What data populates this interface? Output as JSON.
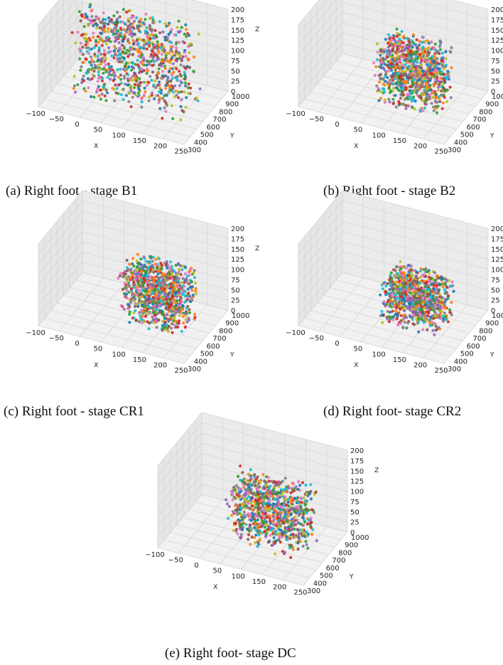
{
  "figure": {
    "panels": [
      {
        "id": "a",
        "caption": "(a) Right foot - stage B1"
      },
      {
        "id": "b",
        "caption": "(b) Right foot - stage B2"
      },
      {
        "id": "c",
        "caption": "(c) Right foot - stage CR1"
      },
      {
        "id": "d",
        "caption": "(d) Right foot- stage CR2"
      },
      {
        "id": "e",
        "caption": "(e) Right foot- stage DC"
      }
    ]
  },
  "chart_data": [
    {
      "type": "scatter",
      "dimensions": 3,
      "title": "",
      "caption": "(a) Right foot - stage B1",
      "xlabel": "X",
      "ylabel": "Y",
      "zlabel": "Z",
      "xlim": [
        -100,
        250
      ],
      "ylim": [
        300,
        1000
      ],
      "zlim": [
        0,
        200
      ],
      "xticks": [
        "−100",
        "−50",
        "0",
        "50",
        "100",
        "150",
        "200",
        "250"
      ],
      "yticks": [
        "300",
        "400",
        "500",
        "600",
        "700",
        "800",
        "900",
        "1000"
      ],
      "zticks": [
        "0",
        "25",
        "50",
        "75",
        "100",
        "125",
        "150",
        "175",
        "200"
      ],
      "grid": true,
      "point_cloud": {
        "x_range": [
          -60,
          220
        ],
        "y_range": [
          500,
          800
        ],
        "z_range": [
          0,
          190
        ]
      },
      "colors": [
        "#1f77b4",
        "#ff7f0e",
        "#2ca02c",
        "#d62728",
        "#9467bd",
        "#8c564b",
        "#e377c2",
        "#7f7f7f",
        "#bcbd22",
        "#17becf"
      ]
    },
    {
      "type": "scatter",
      "dimensions": 3,
      "title": "",
      "caption": "(b) Right foot - stage B2",
      "xlabel": "X",
      "ylabel": "Y",
      "zlabel": "Z",
      "xlim": [
        -100,
        250
      ],
      "ylim": [
        300,
        1000
      ],
      "zlim": [
        0,
        200
      ],
      "xticks": [
        "−100",
        "−50",
        "0",
        "50",
        "100",
        "150",
        "200",
        "250"
      ],
      "yticks": [
        "300",
        "400",
        "500",
        "600",
        "700",
        "800",
        "900",
        "1000"
      ],
      "zticks": [
        "0",
        "25",
        "50",
        "75",
        "100",
        "125",
        "150",
        "175",
        "200"
      ],
      "grid": true,
      "point_cloud": {
        "x_range": [
          40,
          200
        ],
        "y_range": [
          550,
          800
        ],
        "z_range": [
          0,
          140
        ]
      },
      "colors": [
        "#1f77b4",
        "#ff7f0e",
        "#2ca02c",
        "#d62728",
        "#9467bd",
        "#8c564b",
        "#e377c2",
        "#7f7f7f",
        "#bcbd22",
        "#17becf"
      ]
    },
    {
      "type": "scatter",
      "dimensions": 3,
      "title": "",
      "caption": "(c) Right foot - stage CR1",
      "xlabel": "X",
      "ylabel": "Y",
      "zlabel": "Z",
      "xlim": [
        -100,
        250
      ],
      "ylim": [
        300,
        1000
      ],
      "zlim": [
        0,
        200
      ],
      "xticks": [
        "−100",
        "−50",
        "0",
        "50",
        "100",
        "150",
        "200",
        "250"
      ],
      "yticks": [
        "300",
        "400",
        "500",
        "600",
        "700",
        "800",
        "900",
        "1000"
      ],
      "zticks": [
        "0",
        "25",
        "50",
        "75",
        "100",
        "125",
        "150",
        "175",
        "200"
      ],
      "grid": true,
      "point_cloud": {
        "x_range": [
          50,
          210
        ],
        "y_range": [
          550,
          820
        ],
        "z_range": [
          0,
          130
        ]
      },
      "colors": [
        "#1f77b4",
        "#ff7f0e",
        "#2ca02c",
        "#d62728",
        "#9467bd",
        "#8c564b",
        "#e377c2",
        "#7f7f7f",
        "#bcbd22",
        "#17becf"
      ]
    },
    {
      "type": "scatter",
      "dimensions": 3,
      "title": "",
      "caption": "(d) Right foot- stage CR2",
      "xlabel": "X",
      "ylabel": "Y",
      "zlabel": "Z",
      "xlim": [
        -100,
        250
      ],
      "ylim": [
        300,
        1000
      ],
      "zlim": [
        0,
        200
      ],
      "xticks": [
        "−100",
        "−50",
        "0",
        "50",
        "100",
        "150",
        "200",
        "250"
      ],
      "yticks": [
        "300",
        "400",
        "500",
        "600",
        "700",
        "800",
        "900",
        "1000"
      ],
      "zticks": [
        "0",
        "25",
        "50",
        "75",
        "100",
        "125",
        "150",
        "175",
        "200"
      ],
      "grid": true,
      "point_cloud": {
        "x_range": [
          50,
          200
        ],
        "y_range": [
          550,
          800
        ],
        "z_range": [
          0,
          110
        ]
      },
      "colors": [
        "#1f77b4",
        "#ff7f0e",
        "#2ca02c",
        "#d62728",
        "#9467bd",
        "#8c564b",
        "#e377c2",
        "#7f7f7f",
        "#bcbd22",
        "#17becf"
      ]
    },
    {
      "type": "scatter",
      "dimensions": 3,
      "title": "",
      "caption": "(e) Right foot- stage DC",
      "xlabel": "X",
      "ylabel": "Y",
      "zlabel": "Z",
      "xlim": [
        -100,
        250
      ],
      "ylim": [
        300,
        1000
      ],
      "zlim": [
        0,
        200
      ],
      "xticks": [
        "−100",
        "−50",
        "0",
        "50",
        "100",
        "150",
        "200",
        "250"
      ],
      "yticks": [
        "300",
        "400",
        "500",
        "600",
        "700",
        "800",
        "900",
        "1000"
      ],
      "zticks": [
        "0",
        "25",
        "50",
        "75",
        "100",
        "125",
        "150",
        "175",
        "200"
      ],
      "grid": true,
      "point_cloud": {
        "x_range": [
          20,
          210
        ],
        "y_range": [
          550,
          820
        ],
        "z_range": [
          0,
          140
        ]
      },
      "colors": [
        "#1f77b4",
        "#ff7f0e",
        "#2ca02c",
        "#d62728",
        "#9467bd",
        "#8c564b",
        "#e377c2",
        "#7f7f7f",
        "#bcbd22",
        "#17becf"
      ]
    }
  ]
}
